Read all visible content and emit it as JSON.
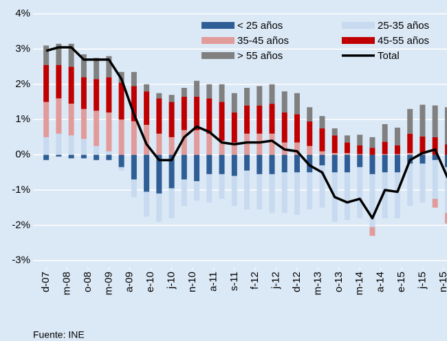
{
  "chart_data": {
    "type": "bar",
    "source": "Fuente: INE",
    "x": [
      0,
      3,
      6,
      9,
      12,
      15,
      18,
      21,
      24,
      27,
      30,
      33,
      36,
      39,
      42,
      45,
      48,
      51,
      54,
      57,
      60,
      63,
      66,
      69,
      72,
      75,
      78,
      81,
      84,
      87,
      90,
      93,
      96
    ],
    "xlim": [
      -2,
      97
    ],
    "xticks": [
      {
        "value": 0,
        "label": "d-07"
      },
      {
        "value": 5,
        "label": "m-08"
      },
      {
        "value": 10,
        "label": "o-08"
      },
      {
        "value": 15,
        "label": "m-09"
      },
      {
        "value": 20,
        "label": "a-09"
      },
      {
        "value": 25,
        "label": "e-10"
      },
      {
        "value": 30,
        "label": "j-10"
      },
      {
        "value": 35,
        "label": "n-10"
      },
      {
        "value": 40,
        "label": "a-11"
      },
      {
        "value": 45,
        "label": "s-11"
      },
      {
        "value": 50,
        "label": "f-12"
      },
      {
        "value": 55,
        "label": "j-12"
      },
      {
        "value": 60,
        "label": "d-12"
      },
      {
        "value": 65,
        "label": "m-13"
      },
      {
        "value": 70,
        "label": "o-13"
      },
      {
        "value": 75,
        "label": "m-14"
      },
      {
        "value": 80,
        "label": "a-14"
      },
      {
        "value": 85,
        "label": "e-15"
      },
      {
        "value": 90,
        "label": "j-15"
      },
      {
        "value": 95,
        "label": "n-15"
      }
    ],
    "ylim": [
      -3.2,
      4.1
    ],
    "yticks": [
      {
        "value": -3,
        "label": "-3%"
      },
      {
        "value": -2,
        "label": "-2%"
      },
      {
        "value": -1,
        "label": "-1%"
      },
      {
        "value": 0,
        "label": "0%"
      },
      {
        "value": 1,
        "label": "1%"
      },
      {
        "value": 2,
        "label": "2%"
      },
      {
        "value": 3,
        "label": "3%"
      },
      {
        "value": 4,
        "label": "4%"
      }
    ],
    "grid": true,
    "series": [
      {
        "name": "< 25 años",
        "color": "#2f5d95",
        "values": [
          -0.15,
          -0.05,
          -0.1,
          -0.1,
          -0.15,
          -0.15,
          -0.35,
          -0.7,
          -1.05,
          -1.1,
          -0.95,
          -0.7,
          -0.75,
          -0.55,
          -0.55,
          -0.6,
          -0.45,
          -0.55,
          -0.55,
          -0.5,
          -0.5,
          -0.5,
          -0.3,
          -0.5,
          -0.5,
          -0.35,
          -0.55,
          -0.5,
          -0.5,
          -0.25,
          -0.25,
          -0.15,
          -0.35
        ]
      },
      {
        "name": "25-35 años",
        "color": "#c8daf0",
        "values": [
          0.5,
          0.6,
          0.55,
          0.45,
          0.25,
          0.1,
          -0.1,
          -0.5,
          -0.7,
          -0.8,
          -0.85,
          -0.75,
          -0.55,
          -0.8,
          -0.7,
          -0.85,
          -1.1,
          -1.0,
          -1.1,
          -1.15,
          -1.2,
          -1.05,
          -1.2,
          -1.4,
          -1.35,
          -1.45,
          -1.5,
          -1.3,
          -1.3,
          -1.2,
          -1.1,
          -1.1,
          -1.3
        ]
      },
      {
        "name": "35-45 años",
        "color": "#e29b9b",
        "values": [
          1.0,
          1.0,
          0.9,
          0.85,
          1.0,
          1.1,
          1.0,
          0.95,
          0.85,
          0.6,
          0.5,
          0.7,
          0.7,
          0.6,
          0.4,
          0.35,
          0.6,
          0.6,
          0.6,
          0.35,
          0.35,
          0.25,
          0.1,
          0.05,
          0.05,
          0.02,
          -0.25,
          0.02,
          0.02,
          0.05,
          0.02,
          -0.25,
          -0.3
        ]
      },
      {
        "name": "45-55 años",
        "color": "#c00000",
        "values": [
          1.05,
          0.95,
          1.05,
          0.9,
          0.9,
          1.0,
          1.05,
          1.0,
          0.95,
          1.0,
          1.0,
          0.95,
          0.95,
          1.0,
          1.1,
          0.85,
          0.8,
          0.8,
          0.85,
          0.85,
          0.8,
          0.7,
          0.65,
          0.5,
          0.3,
          0.25,
          0.2,
          0.35,
          0.25,
          0.55,
          0.5,
          0.5,
          0.3
        ]
      },
      {
        "name": "> 55 años",
        "color": "#808080",
        "values": [
          0.55,
          0.6,
          0.65,
          0.65,
          0.6,
          0.6,
          0.3,
          0.4,
          0.2,
          0.15,
          0.2,
          0.25,
          0.45,
          0.4,
          0.5,
          0.55,
          0.5,
          0.55,
          0.55,
          0.6,
          0.6,
          0.4,
          0.35,
          0.2,
          0.2,
          0.3,
          0.3,
          0.5,
          0.5,
          0.7,
          0.9,
          0.9,
          1.05
        ]
      }
    ],
    "line": {
      "name": "Total",
      "color": "#000000",
      "values": [
        2.95,
        3.05,
        3.05,
        2.7,
        2.7,
        2.7,
        2.15,
        1.15,
        0.3,
        -0.15,
        -0.15,
        0.5,
        0.8,
        0.65,
        0.35,
        0.3,
        0.35,
        0.35,
        0.4,
        0.15,
        0.1,
        -0.3,
        -0.5,
        -1.2,
        -1.35,
        -1.25,
        -1.8,
        -1.0,
        -1.05,
        -0.15,
        0.05,
        0.15,
        -0.65
      ]
    }
  }
}
